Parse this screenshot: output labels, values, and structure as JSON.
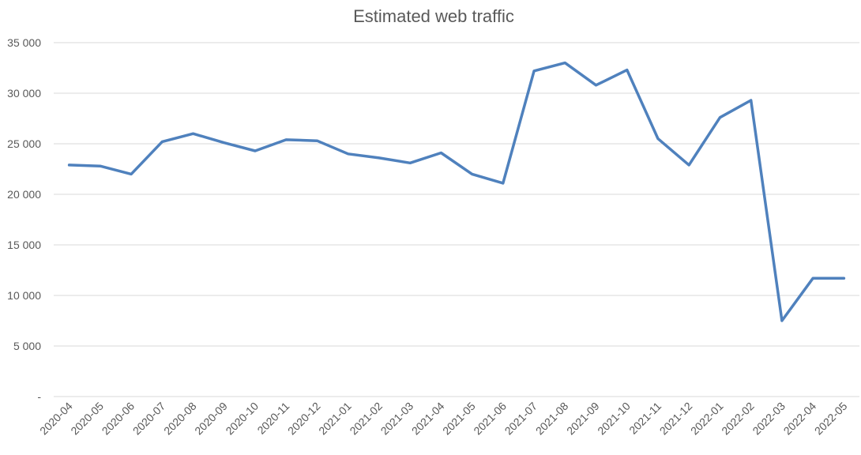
{
  "chart_data": {
    "type": "line",
    "title": "Estimated web traffic",
    "xlabel": "",
    "ylabel": "",
    "categories": [
      "2020-04",
      "2020-05",
      "2020-06",
      "2020-07",
      "2020-08",
      "2020-09",
      "2020-10",
      "2020-11",
      "2020-12",
      "2021-01",
      "2021-02",
      "2021-03",
      "2021-04",
      "2021-05",
      "2021-06",
      "2021-07",
      "2021-08",
      "2021-09",
      "2021-10",
      "2021-11",
      "2021-12",
      "2022-01",
      "2022-02",
      "2022-03",
      "2022-04",
      "2022-05"
    ],
    "series": [
      {
        "values": [
          22900,
          22800,
          22000,
          25200,
          26000,
          25100,
          24300,
          25400,
          25300,
          24000,
          23600,
          23100,
          24100,
          22000,
          21100,
          32200,
          33000,
          30800,
          32300,
          25500,
          22900,
          27600,
          29300,
          7500,
          11700,
          11700
        ],
        "color": "#4f81bd"
      }
    ],
    "ylim": [
      0,
      35000
    ],
    "yticks": [
      0,
      5000,
      10000,
      15000,
      20000,
      25000,
      30000,
      35000
    ],
    "ytick_labels": [
      "-",
      "5 000",
      "10 000",
      "15 000",
      "20 000",
      "25 000",
      "30 000",
      "35 000"
    ],
    "grid": true,
    "legend": "none"
  }
}
